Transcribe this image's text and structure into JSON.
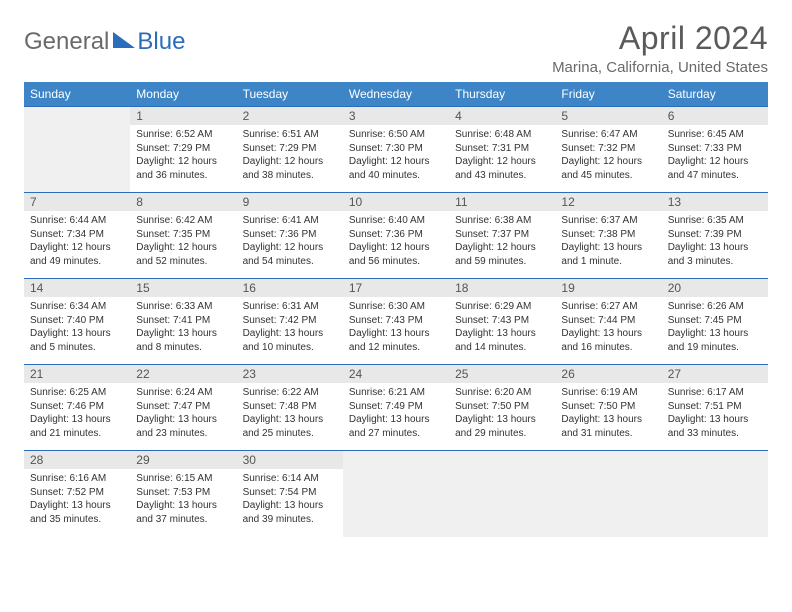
{
  "logo": {
    "text_general": "General",
    "text_blue": "Blue"
  },
  "title": "April 2024",
  "location": "Marina, California, United States",
  "colors": {
    "header_bg": "#3d85c6",
    "header_text": "#ffffff",
    "border": "#2a6ebb",
    "daynum_bg": "#e8e8e8",
    "empty_bg": "#f0f0f0",
    "body_text": "#333333",
    "title_text": "#5a5a5a"
  },
  "weekday_labels": [
    "Sunday",
    "Monday",
    "Tuesday",
    "Wednesday",
    "Thursday",
    "Friday",
    "Saturday"
  ],
  "grid": [
    [
      {
        "empty": true
      },
      {
        "num": "1",
        "sunrise": "Sunrise: 6:52 AM",
        "sunset": "Sunset: 7:29 PM",
        "day1": "Daylight: 12 hours",
        "day2": "and 36 minutes."
      },
      {
        "num": "2",
        "sunrise": "Sunrise: 6:51 AM",
        "sunset": "Sunset: 7:29 PM",
        "day1": "Daylight: 12 hours",
        "day2": "and 38 minutes."
      },
      {
        "num": "3",
        "sunrise": "Sunrise: 6:50 AM",
        "sunset": "Sunset: 7:30 PM",
        "day1": "Daylight: 12 hours",
        "day2": "and 40 minutes."
      },
      {
        "num": "4",
        "sunrise": "Sunrise: 6:48 AM",
        "sunset": "Sunset: 7:31 PM",
        "day1": "Daylight: 12 hours",
        "day2": "and 43 minutes."
      },
      {
        "num": "5",
        "sunrise": "Sunrise: 6:47 AM",
        "sunset": "Sunset: 7:32 PM",
        "day1": "Daylight: 12 hours",
        "day2": "and 45 minutes."
      },
      {
        "num": "6",
        "sunrise": "Sunrise: 6:45 AM",
        "sunset": "Sunset: 7:33 PM",
        "day1": "Daylight: 12 hours",
        "day2": "and 47 minutes."
      }
    ],
    [
      {
        "num": "7",
        "sunrise": "Sunrise: 6:44 AM",
        "sunset": "Sunset: 7:34 PM",
        "day1": "Daylight: 12 hours",
        "day2": "and 49 minutes."
      },
      {
        "num": "8",
        "sunrise": "Sunrise: 6:42 AM",
        "sunset": "Sunset: 7:35 PM",
        "day1": "Daylight: 12 hours",
        "day2": "and 52 minutes."
      },
      {
        "num": "9",
        "sunrise": "Sunrise: 6:41 AM",
        "sunset": "Sunset: 7:36 PM",
        "day1": "Daylight: 12 hours",
        "day2": "and 54 minutes."
      },
      {
        "num": "10",
        "sunrise": "Sunrise: 6:40 AM",
        "sunset": "Sunset: 7:36 PM",
        "day1": "Daylight: 12 hours",
        "day2": "and 56 minutes."
      },
      {
        "num": "11",
        "sunrise": "Sunrise: 6:38 AM",
        "sunset": "Sunset: 7:37 PM",
        "day1": "Daylight: 12 hours",
        "day2": "and 59 minutes."
      },
      {
        "num": "12",
        "sunrise": "Sunrise: 6:37 AM",
        "sunset": "Sunset: 7:38 PM",
        "day1": "Daylight: 13 hours",
        "day2": "and 1 minute."
      },
      {
        "num": "13",
        "sunrise": "Sunrise: 6:35 AM",
        "sunset": "Sunset: 7:39 PM",
        "day1": "Daylight: 13 hours",
        "day2": "and 3 minutes."
      }
    ],
    [
      {
        "num": "14",
        "sunrise": "Sunrise: 6:34 AM",
        "sunset": "Sunset: 7:40 PM",
        "day1": "Daylight: 13 hours",
        "day2": "and 5 minutes."
      },
      {
        "num": "15",
        "sunrise": "Sunrise: 6:33 AM",
        "sunset": "Sunset: 7:41 PM",
        "day1": "Daylight: 13 hours",
        "day2": "and 8 minutes."
      },
      {
        "num": "16",
        "sunrise": "Sunrise: 6:31 AM",
        "sunset": "Sunset: 7:42 PM",
        "day1": "Daylight: 13 hours",
        "day2": "and 10 minutes."
      },
      {
        "num": "17",
        "sunrise": "Sunrise: 6:30 AM",
        "sunset": "Sunset: 7:43 PM",
        "day1": "Daylight: 13 hours",
        "day2": "and 12 minutes."
      },
      {
        "num": "18",
        "sunrise": "Sunrise: 6:29 AM",
        "sunset": "Sunset: 7:43 PM",
        "day1": "Daylight: 13 hours",
        "day2": "and 14 minutes."
      },
      {
        "num": "19",
        "sunrise": "Sunrise: 6:27 AM",
        "sunset": "Sunset: 7:44 PM",
        "day1": "Daylight: 13 hours",
        "day2": "and 16 minutes."
      },
      {
        "num": "20",
        "sunrise": "Sunrise: 6:26 AM",
        "sunset": "Sunset: 7:45 PM",
        "day1": "Daylight: 13 hours",
        "day2": "and 19 minutes."
      }
    ],
    [
      {
        "num": "21",
        "sunrise": "Sunrise: 6:25 AM",
        "sunset": "Sunset: 7:46 PM",
        "day1": "Daylight: 13 hours",
        "day2": "and 21 minutes."
      },
      {
        "num": "22",
        "sunrise": "Sunrise: 6:24 AM",
        "sunset": "Sunset: 7:47 PM",
        "day1": "Daylight: 13 hours",
        "day2": "and 23 minutes."
      },
      {
        "num": "23",
        "sunrise": "Sunrise: 6:22 AM",
        "sunset": "Sunset: 7:48 PM",
        "day1": "Daylight: 13 hours",
        "day2": "and 25 minutes."
      },
      {
        "num": "24",
        "sunrise": "Sunrise: 6:21 AM",
        "sunset": "Sunset: 7:49 PM",
        "day1": "Daylight: 13 hours",
        "day2": "and 27 minutes."
      },
      {
        "num": "25",
        "sunrise": "Sunrise: 6:20 AM",
        "sunset": "Sunset: 7:50 PM",
        "day1": "Daylight: 13 hours",
        "day2": "and 29 minutes."
      },
      {
        "num": "26",
        "sunrise": "Sunrise: 6:19 AM",
        "sunset": "Sunset: 7:50 PM",
        "day1": "Daylight: 13 hours",
        "day2": "and 31 minutes."
      },
      {
        "num": "27",
        "sunrise": "Sunrise: 6:17 AM",
        "sunset": "Sunset: 7:51 PM",
        "day1": "Daylight: 13 hours",
        "day2": "and 33 minutes."
      }
    ],
    [
      {
        "num": "28",
        "sunrise": "Sunrise: 6:16 AM",
        "sunset": "Sunset: 7:52 PM",
        "day1": "Daylight: 13 hours",
        "day2": "and 35 minutes."
      },
      {
        "num": "29",
        "sunrise": "Sunrise: 6:15 AM",
        "sunset": "Sunset: 7:53 PM",
        "day1": "Daylight: 13 hours",
        "day2": "and 37 minutes."
      },
      {
        "num": "30",
        "sunrise": "Sunrise: 6:14 AM",
        "sunset": "Sunset: 7:54 PM",
        "day1": "Daylight: 13 hours",
        "day2": "and 39 minutes."
      },
      {
        "empty": true
      },
      {
        "empty": true
      },
      {
        "empty": true
      },
      {
        "empty": true
      }
    ]
  ]
}
